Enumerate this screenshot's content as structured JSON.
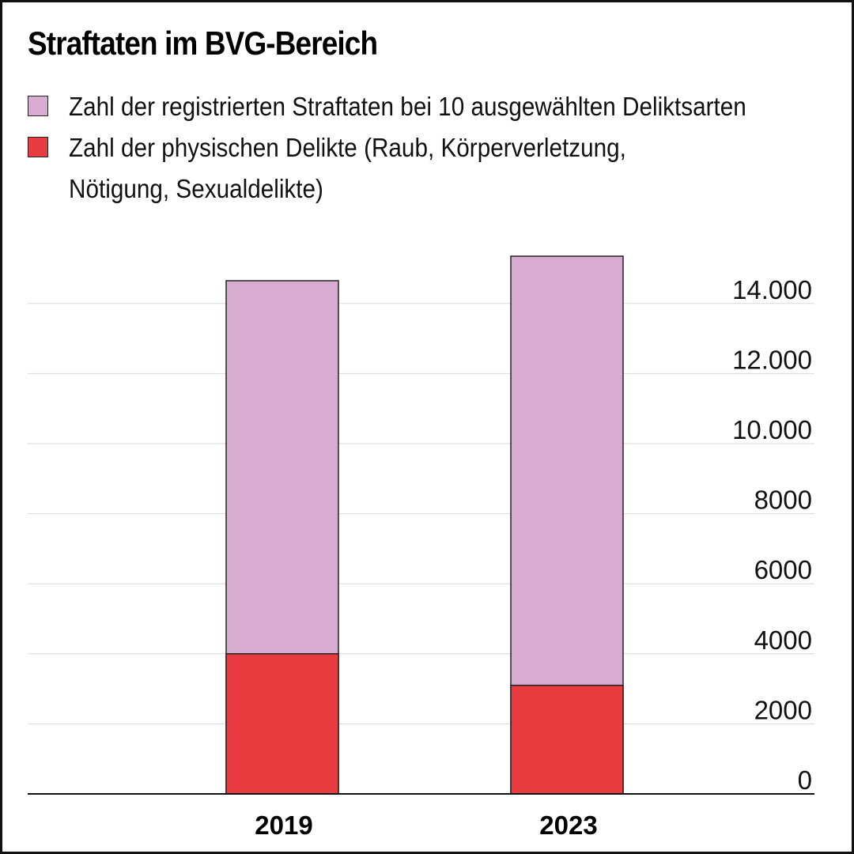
{
  "chart_data": {
    "type": "bar",
    "stacked": true,
    "title": "Straftaten im BVG-Bereich",
    "categories": [
      "2019",
      "2023"
    ],
    "series": [
      {
        "name": "Zahl der registrierten Straftaten bei 10 ausgewählten Deliktsarten",
        "name_lines": [
          "Zahl der registrierten Straftaten bei 10 ausgewählten Deliktsarten"
        ],
        "color": "#d8acd1",
        "totals": [
          14650,
          15350
        ]
      },
      {
        "name": "Zahl der physischen Delikte (Raub, Körperverletzung, Nötigung, Sexualdelikte)",
        "name_lines": [
          "Zahl der physischen Delikte (Raub, Körperverletzung,",
          "Nötigung, Sexualdelikte)"
        ],
        "color": "#e83c40",
        "totals": [
          4000,
          3100
        ]
      }
    ],
    "y_ticks": [
      0,
      2000,
      4000,
      6000,
      8000,
      10000,
      12000,
      14000
    ],
    "y_tick_labels": [
      "0",
      "2000",
      "4000",
      "6000",
      "8000",
      "10.000",
      "12.000",
      "14.000"
    ],
    "ylim": [
      0,
      15500
    ],
    "y_axis_side": "right",
    "grid": true,
    "legend_position": "top-left",
    "xlabel": "",
    "ylabel": ""
  }
}
